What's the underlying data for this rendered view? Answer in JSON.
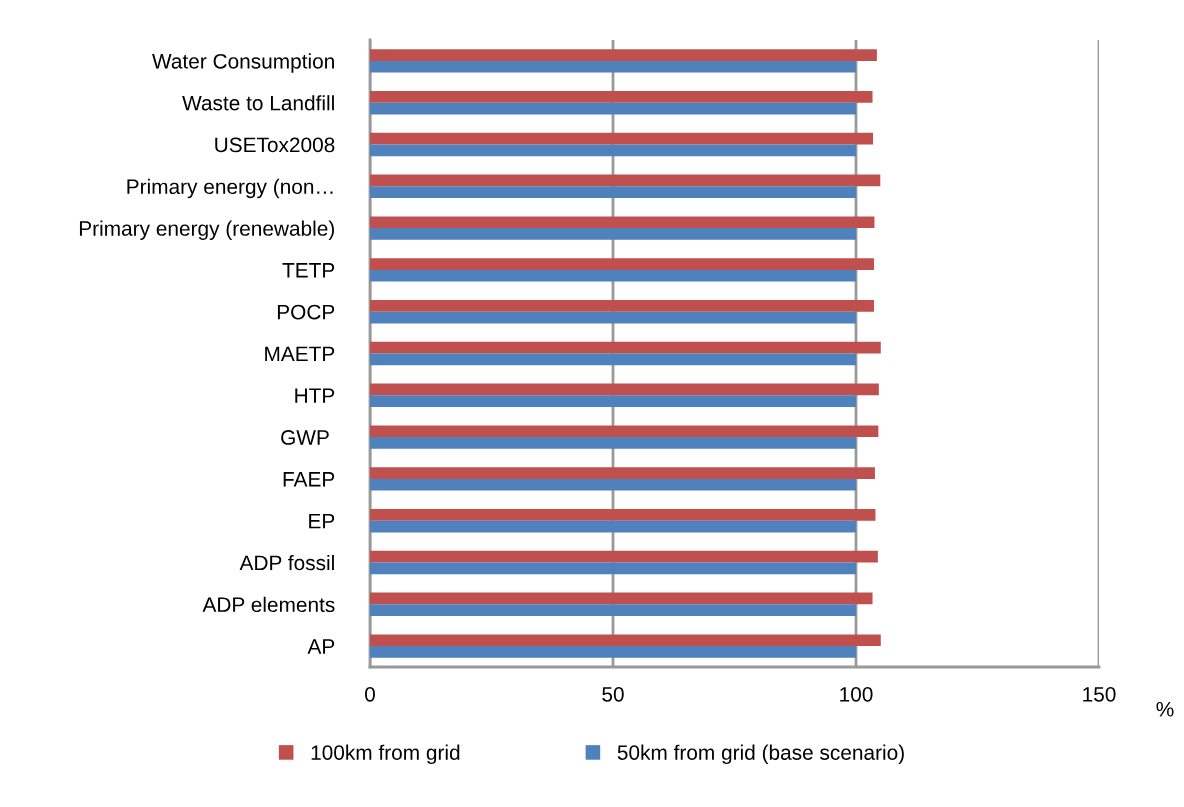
{
  "chart_data": {
    "type": "bar",
    "orientation": "horizontal",
    "categories": [
      "Water Consumption",
      "Waste to Landfill",
      "USETox2008",
      "Primary energy (non…",
      "Primary energy (renewable)",
      "TETP",
      "POCP",
      "MAETP",
      "HTP",
      "GWP ",
      "FAEP",
      "EP",
      "ADP fossil",
      "ADP elements",
      "AP"
    ],
    "series": [
      {
        "name": "100km from grid",
        "color": "#c0504d",
        "values": [
          104.3,
          103.4,
          103.5,
          105.0,
          103.8,
          103.7,
          103.7,
          105.1,
          104.7,
          104.6,
          103.9,
          104.0,
          104.5,
          103.4,
          105.1
        ]
      },
      {
        "name": "50km from grid (base scenario)",
        "color": "#4f81bd",
        "values": [
          100,
          100,
          100,
          100,
          100,
          100,
          100,
          100,
          100,
          100,
          100,
          100,
          100,
          100,
          100
        ]
      }
    ],
    "xlim": [
      0,
      150
    ],
    "xticks": [
      0,
      50,
      100,
      150
    ],
    "xlabel": "%",
    "grid": "x",
    "legend": "bottom"
  }
}
